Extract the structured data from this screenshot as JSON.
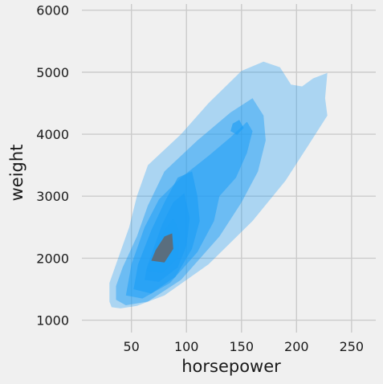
{
  "chart_data": {
    "type": "kde-contour",
    "title": "",
    "xlabel": "horsepower",
    "ylabel": "weight",
    "xlim": [
      5,
      272
    ],
    "ylim": [
      800,
      6100
    ],
    "xticks": [
      50,
      100,
      150,
      200,
      250
    ],
    "yticks": [
      1000,
      2000,
      3000,
      4000,
      5000,
      6000
    ],
    "grid": true,
    "fill_color": "#1f9ef5",
    "background": "#f0f0f0",
    "levels": [
      {
        "alpha": 0.33,
        "polygon": [
          [
            30,
            1300
          ],
          [
            32,
            1210
          ],
          [
            40,
            1190
          ],
          [
            55,
            1230
          ],
          [
            80,
            1400
          ],
          [
            120,
            1900
          ],
          [
            160,
            2600
          ],
          [
            190,
            3250
          ],
          [
            210,
            3800
          ],
          [
            228,
            4300
          ],
          [
            226,
            4580
          ],
          [
            228,
            4990
          ],
          [
            215,
            4900
          ],
          [
            205,
            4770
          ],
          [
            195,
            4800
          ],
          [
            185,
            5080
          ],
          [
            170,
            5170
          ],
          [
            150,
            5020
          ],
          [
            120,
            4500
          ],
          [
            95,
            4000
          ],
          [
            65,
            3500
          ],
          [
            55,
            3000
          ],
          [
            48,
            2500
          ],
          [
            38,
            2000
          ],
          [
            30,
            1600
          ]
        ]
      },
      {
        "alpha": 0.45,
        "polygon": [
          [
            36,
            1330
          ],
          [
            45,
            1240
          ],
          [
            65,
            1300
          ],
          [
            95,
            1650
          ],
          [
            130,
            2350
          ],
          [
            150,
            2900
          ],
          [
            165,
            3400
          ],
          [
            172,
            3900
          ],
          [
            170,
            4300
          ],
          [
            160,
            4580
          ],
          [
            140,
            4350
          ],
          [
            110,
            3900
          ],
          [
            80,
            3400
          ],
          [
            65,
            2850
          ],
          [
            55,
            2350
          ],
          [
            42,
            1850
          ],
          [
            36,
            1550
          ]
        ]
      },
      {
        "alpha": 0.55,
        "polygon": [
          [
            45,
            1400
          ],
          [
            60,
            1350
          ],
          [
            85,
            1600
          ],
          [
            110,
            2100
          ],
          [
            125,
            2600
          ],
          [
            130,
            3000
          ],
          [
            145,
            3300
          ],
          [
            155,
            3700
          ],
          [
            160,
            4050
          ],
          [
            155,
            4200
          ],
          [
            140,
            3950
          ],
          [
            120,
            3650
          ],
          [
            95,
            3300
          ],
          [
            75,
            2950
          ],
          [
            62,
            2500
          ],
          [
            50,
            1900
          ]
        ]
      },
      {
        "alpha": 0.66,
        "polygon": [
          [
            52,
            1500
          ],
          [
            68,
            1430
          ],
          [
            90,
            1700
          ],
          [
            105,
            2150
          ],
          [
            112,
            2600
          ],
          [
            110,
            3000
          ],
          [
            105,
            3400
          ],
          [
            92,
            3300
          ],
          [
            80,
            2900
          ],
          [
            68,
            2450
          ],
          [
            56,
            1900
          ]
        ]
      },
      {
        "alpha": 0.66,
        "polygon": [
          [
            140,
            4050
          ],
          [
            146,
            3990
          ],
          [
            152,
            4100
          ],
          [
            148,
            4230
          ],
          [
            142,
            4170
          ]
        ]
      },
      {
        "alpha": 0.78,
        "polygon": [
          [
            62,
            1650
          ],
          [
            75,
            1620
          ],
          [
            92,
            1850
          ],
          [
            100,
            2200
          ],
          [
            103,
            2650
          ],
          [
            98,
            3050
          ],
          [
            88,
            2900
          ],
          [
            78,
            2550
          ],
          [
            70,
            2150
          ],
          [
            64,
            1850
          ]
        ]
      },
      {
        "alpha": 0.9,
        "polygon": [
          [
            64,
            1800
          ],
          [
            78,
            1760
          ],
          [
            92,
            2000
          ],
          [
            94,
            2400
          ],
          [
            88,
            2650
          ],
          [
            80,
            2450
          ],
          [
            72,
            2150
          ]
        ]
      },
      {
        "alpha": 1.0,
        "polygon": [
          [
            68,
            1960
          ],
          [
            80,
            1930
          ],
          [
            88,
            2150
          ],
          [
            87,
            2400
          ],
          [
            80,
            2350
          ],
          [
            72,
            2130
          ]
        ],
        "color": "#5a6e7e"
      }
    ]
  }
}
